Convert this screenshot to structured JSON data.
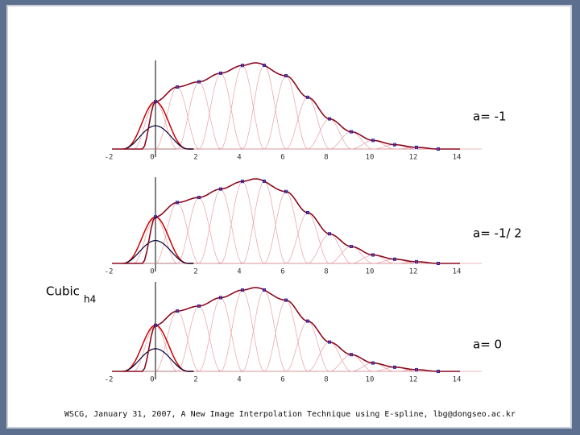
{
  "label": "Cubic",
  "label_subscript": "h4",
  "panels": [
    {
      "label": "a= -1",
      "x_tick_labels": [
        "-2",
        "0",
        "2",
        "4",
        "6",
        "8",
        "10",
        "12",
        "14"
      ]
    },
    {
      "label": "a= -1/ 2",
      "x_tick_labels": [
        "-2",
        "0",
        "2",
        "4",
        "6",
        "8",
        "10",
        "12",
        "14"
      ]
    },
    {
      "label": "a= 0",
      "x_tick_labels": [
        "-2",
        "0",
        "2",
        "4",
        "6",
        "8",
        "10",
        "12",
        "14"
      ]
    }
  ],
  "footer": "WSCG, January 31, 2007, A New Image Interpolation Technique using E-spline, lbg@dongseo.ac.kr"
}
